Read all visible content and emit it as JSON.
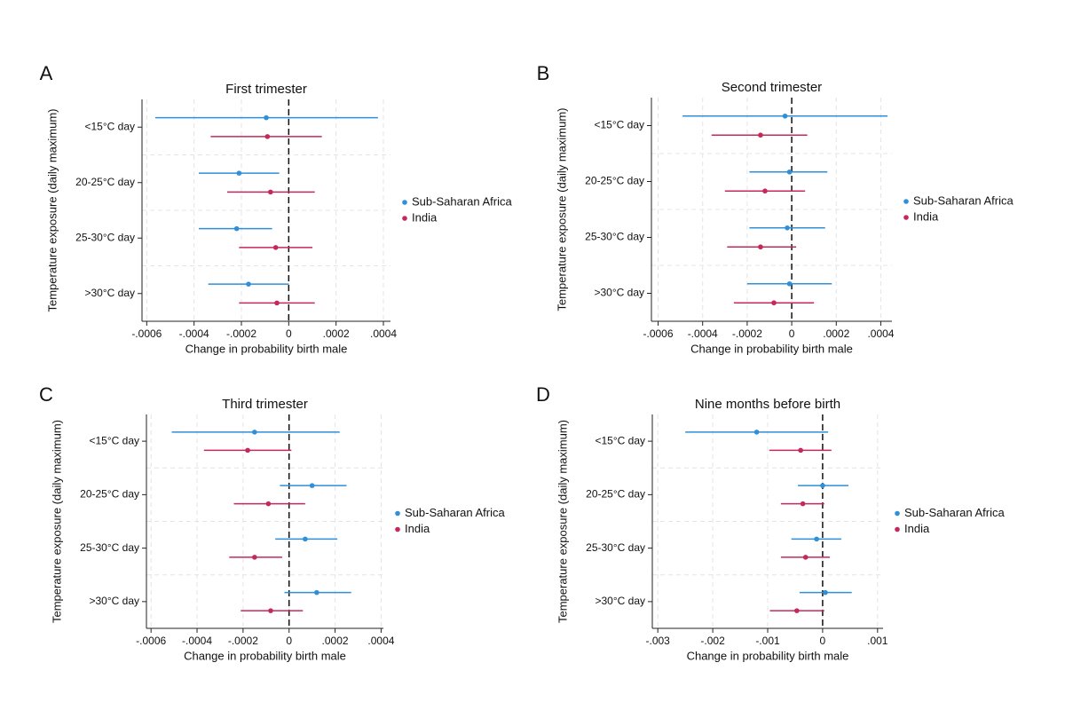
{
  "chart_data": [
    {
      "type": "errorbar",
      "panel": "A",
      "title": "First trimester",
      "x_label": "Change in probability birth male",
      "y_label": "Temperature exposure (daily maximum)",
      "categories": [
        "<15°C day",
        "20-25°C day",
        "25-30°C day",
        ">30°C day"
      ],
      "series": [
        {
          "name": "Sub-Saharan Africa",
          "color": "#2f8fd8",
          "values": [
            -9.5e-05,
            -0.00021,
            -0.00022,
            -0.00017
          ],
          "ci_low": [
            -0.000564,
            -0.00038,
            -0.00038,
            -0.00034
          ],
          "ci_high": [
            0.000377,
            -4e-05,
            -7e-05,
            0.0
          ]
        },
        {
          "name": "India",
          "color": "#c4295a",
          "values": [
            -9e-05,
            -7.7e-05,
            -5.5e-05,
            -5e-05
          ],
          "ci_low": [
            -0.00033,
            -0.00026,
            -0.00021,
            -0.00021
          ],
          "ci_high": [
            0.00014,
            0.00011,
            0.0001,
            0.00011
          ]
        }
      ],
      "xlim": [
        -0.00062,
        0.00043
      ],
      "xticks": [
        {
          "value": -0.0006,
          "label": "-.0006"
        },
        {
          "value": -0.0004,
          "label": "-.0004"
        },
        {
          "value": -0.0002,
          "label": "-.0002"
        },
        0,
        {
          "value": 0.0002,
          "label": ".0002"
        },
        {
          "value": 0.0004,
          "label": ".0004"
        }
      ],
      "reference_line": 0,
      "grid": true,
      "legend": "right"
    },
    {
      "type": "errorbar",
      "panel": "B",
      "title": "Second trimester",
      "x_label": "Change in probability birth male",
      "y_label": "Temperature exposure (daily maximum)",
      "categories": [
        "<15°C day",
        "20-25°C day",
        "25-30°C day",
        ">30°C day"
      ],
      "series": [
        {
          "name": "Sub-Saharan Africa",
          "color": "#2f8fd8",
          "values": [
            -3e-05,
            -1e-05,
            -2e-05,
            -1e-05
          ],
          "ci_low": [
            -0.00049,
            -0.00019,
            -0.00019,
            -0.0002
          ],
          "ci_high": [
            0.00043,
            0.00016,
            0.00015,
            0.00018
          ]
        },
        {
          "name": "India",
          "color": "#c4295a",
          "values": [
            -0.00014,
            -0.00012,
            -0.00014,
            -8e-05
          ],
          "ci_low": [
            -0.00036,
            -0.0003,
            -0.00029,
            -0.00026
          ],
          "ci_high": [
            7e-05,
            6e-05,
            2e-05,
            0.0001
          ]
        }
      ],
      "xlim": [
        -0.00063,
        0.00045
      ],
      "xticks": [
        {
          "value": -0.0006,
          "label": "-.0006"
        },
        {
          "value": -0.0004,
          "label": "-.0004"
        },
        {
          "value": -0.0002,
          "label": "-.0002"
        },
        0,
        {
          "value": 0.0002,
          "label": ".0002"
        },
        {
          "value": 0.0004,
          "label": ".0004"
        }
      ],
      "reference_line": 0,
      "grid": true,
      "legend": "right"
    },
    {
      "type": "errorbar",
      "panel": "C",
      "title": "Third trimester",
      "x_label": "Change in probability birth male",
      "y_label": "Temperature exposure (daily maximum)",
      "categories": [
        "<15°C day",
        "20-25°C day",
        "25-30°C day",
        ">30°C day"
      ],
      "series": [
        {
          "name": "Sub-Saharan Africa",
          "color": "#2f8fd8",
          "values": [
            -0.00015,
            0.0001,
            7e-05,
            0.00012
          ],
          "ci_low": [
            -0.00051,
            -4e-05,
            -6e-05,
            -2e-05
          ],
          "ci_high": [
            0.00022,
            0.00025,
            0.00021,
            0.00027
          ]
        },
        {
          "name": "India",
          "color": "#c4295a",
          "values": [
            -0.00018,
            -9e-05,
            -0.00015,
            -8e-05
          ],
          "ci_low": [
            -0.00037,
            -0.00024,
            -0.00026,
            -0.00021
          ],
          "ci_high": [
            1e-05,
            7e-05,
            -3e-05,
            6e-05
          ]
        }
      ],
      "xlim": [
        -0.00062,
        0.00041
      ],
      "xticks": [
        {
          "value": -0.0006,
          "label": "-.0006"
        },
        {
          "value": -0.0004,
          "label": "-.0004"
        },
        {
          "value": -0.0002,
          "label": "-.0002"
        },
        0,
        {
          "value": 0.0002,
          "label": ".0002"
        },
        {
          "value": 0.0004,
          "label": ".0004"
        }
      ],
      "reference_line": 0,
      "grid": true,
      "legend": "right"
    },
    {
      "type": "errorbar",
      "panel": "D",
      "title": "Nine months before birth",
      "x_label": "Change in probability birth male",
      "y_label": "Temperature exposure (daily maximum)",
      "categories": [
        "<15°C day",
        "20-25°C day",
        "25-30°C day",
        ">30°C day"
      ],
      "series": [
        {
          "name": "Sub-Saharan Africa",
          "color": "#2f8fd8",
          "values": [
            -0.0012,
            0.0,
            -0.00011,
            5e-05
          ],
          "ci_low": [
            -0.0025,
            -0.00045,
            -0.00057,
            -0.00042
          ],
          "ci_high": [
            0.0001,
            0.00047,
            0.00034,
            0.00053
          ]
        },
        {
          "name": "India",
          "color": "#c4295a",
          "values": [
            -0.0004,
            -0.00036,
            -0.00031,
            -0.00047
          ],
          "ci_low": [
            -0.00097,
            -0.00076,
            -0.00076,
            -0.00096
          ],
          "ci_high": [
            0.00016,
            3e-05,
            0.00013,
            3e-05
          ]
        }
      ],
      "xlim": [
        -0.0031,
        0.0011
      ],
      "xticks": [
        {
          "value": -0.003,
          "label": "-.003"
        },
        {
          "value": -0.002,
          "label": "-.002"
        },
        {
          "value": -0.001,
          "label": "-.001"
        },
        0,
        {
          "value": 0.001,
          "label": ".001"
        }
      ],
      "reference_line": 0,
      "grid": true,
      "legend": "right"
    }
  ]
}
